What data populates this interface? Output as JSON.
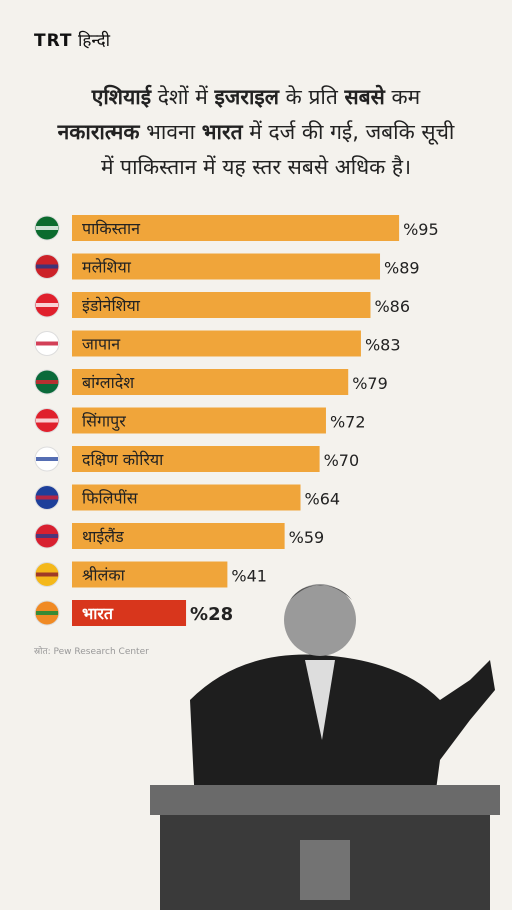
{
  "logo": {
    "brand": "TRT",
    "edition": "हिन्दी"
  },
  "title_lines": [
    [
      {
        "text": "एशियाई",
        "bold": true
      },
      {
        "text": " देशों में ",
        "bold": false
      },
      {
        "text": "इजराइल",
        "bold": true
      },
      {
        "text": " के प्रति ",
        "bold": false
      },
      {
        "text": "सबसे",
        "bold": true
      },
      {
        "text": " कम",
        "bold": false
      }
    ],
    [
      {
        "text": "नकारात्मक",
        "bold": true
      },
      {
        "text": " भावना ",
        "bold": false
      },
      {
        "text": "भारत",
        "bold": true
      },
      {
        "text": " में दर्ज की गई, जबकि सूची",
        "bold": false
      }
    ],
    [
      {
        "text": "में पाकिस्तान में यह स्तर सबसे अधिक है।",
        "bold": false
      }
    ]
  ],
  "chart_data": {
    "type": "hbar",
    "categories": [
      "पाकिस्तान",
      "मलेशिया",
      "इंडोनेशिया",
      "जापान",
      "बांग्लादेश",
      "सिंगापुर",
      "दक्षिण कोरिया",
      "फिलिपींस",
      "थाईलैंड",
      "श्रीलंका",
      "भारत"
    ],
    "values": [
      95,
      89,
      86,
      83,
      79,
      72,
      70,
      64,
      59,
      41,
      28
    ],
    "value_labels": [
      "%95",
      "%89",
      "%86",
      "%83",
      "%79",
      "%72",
      "%70",
      "%64",
      "%59",
      "%41",
      "%28"
    ],
    "colors": [
      "#f0a53a",
      "#f0a53a",
      "#f0a53a",
      "#f0a53a",
      "#f0a53a",
      "#f0a53a",
      "#f0a53a",
      "#f0a53a",
      "#f0a53a",
      "#f0a53a",
      "#d8361c"
    ],
    "xlim": [
      0,
      100
    ]
  },
  "source": "स्रोत: Pew Research Center"
}
